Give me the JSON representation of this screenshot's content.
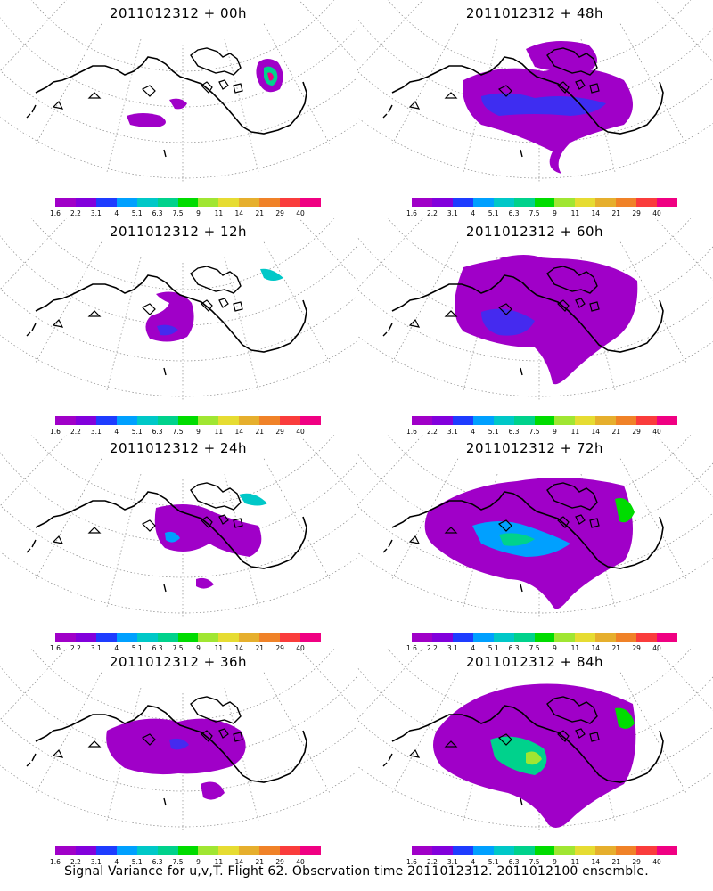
{
  "panels": [
    {
      "title": "2011012312 + 00h"
    },
    {
      "title": "2011012312 + 48h"
    },
    {
      "title": "2011012312 + 12h"
    },
    {
      "title": "2011012312 + 60h"
    },
    {
      "title": "2011012312 + 24h"
    },
    {
      "title": "2011012312 + 72h"
    },
    {
      "title": "2011012312 + 36h"
    },
    {
      "title": "2011012312 + 84h"
    }
  ],
  "colorbar": {
    "ticks": [
      "1.6",
      "2.2",
      "3.1",
      "4",
      "5.1",
      "6.3",
      "7.5",
      "9",
      "11",
      "14",
      "21",
      "29",
      "40"
    ],
    "colors": [
      "#a000c8",
      "#8200dc",
      "#1e3cff",
      "#00a0ff",
      "#00c8c8",
      "#00d28c",
      "#00dc00",
      "#a0e632",
      "#e6dc32",
      "#e6af2d",
      "#f08228",
      "#fa3c3c",
      "#f00082"
    ]
  },
  "caption": "Signal Variance for u,v,T. Flight 62. Observation time 2011012312. 2011012100 ensemble."
}
